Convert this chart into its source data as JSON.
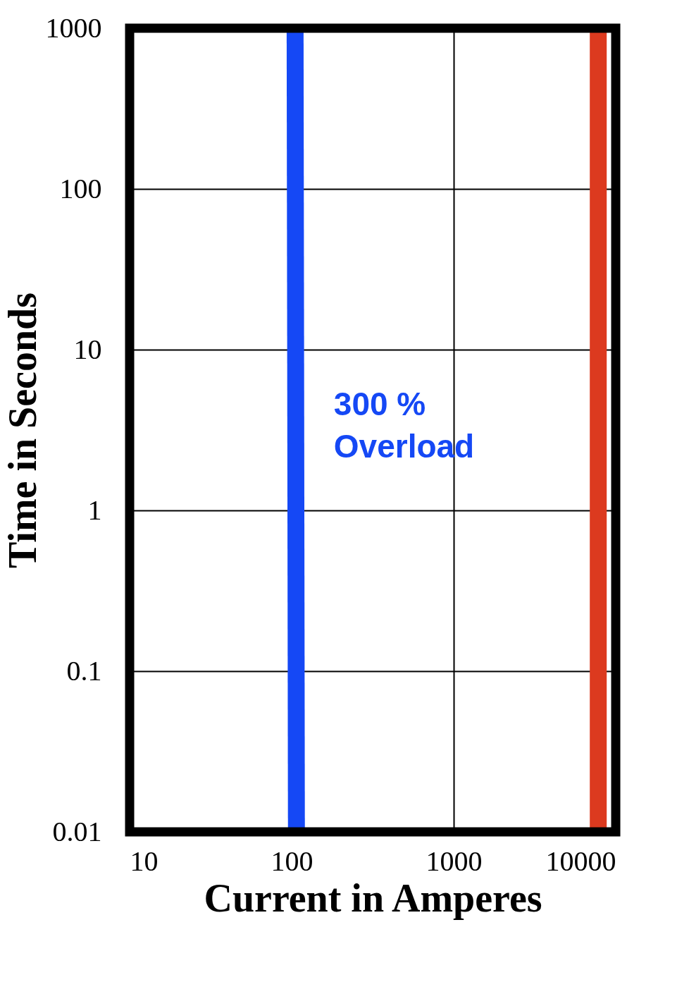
{
  "chart_data": {
    "type": "line",
    "xlabel": "Current in Amperes",
    "ylabel": "Time in Seconds",
    "log": "xy",
    "xlim": [
      10,
      10000
    ],
    "xticks": [
      10,
      100,
      1000,
      10000
    ],
    "ylim": [
      0.01,
      1000
    ],
    "yticks": [
      0.01,
      0.1,
      1,
      10,
      100,
      1000
    ],
    "grid": true,
    "line_style": "solid",
    "series": [
      {
        "color": "#1548f5",
        "x": [
          105,
          107
        ],
        "values": [
          1000,
          0.01
        ]
      },
      {
        "color": "#dc3a1f",
        "x": [
          7800,
          7800
        ],
        "values": [
          1000,
          0.01
        ]
      }
    ],
    "annotations": [
      "300 %\nOverload"
    ]
  }
}
